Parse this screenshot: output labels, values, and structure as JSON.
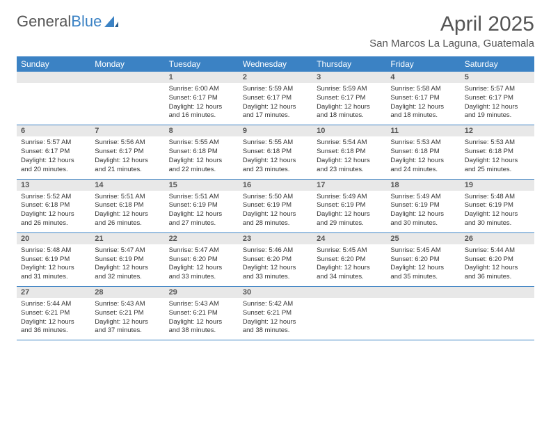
{
  "logo": {
    "text1": "General",
    "text2": "Blue"
  },
  "title": "April 2025",
  "location": "San Marcos La Laguna, Guatemala",
  "colors": {
    "header_bg": "#3b82c4",
    "header_text": "#ffffff",
    "daynum_bg": "#e8e8e8",
    "border": "#3b82c4",
    "text": "#333333",
    "title_text": "#555555"
  },
  "weekdays": [
    "Sunday",
    "Monday",
    "Tuesday",
    "Wednesday",
    "Thursday",
    "Friday",
    "Saturday"
  ],
  "weeks": [
    [
      {
        "n": "",
        "sr": "",
        "ss": "",
        "dl": ""
      },
      {
        "n": "",
        "sr": "",
        "ss": "",
        "dl": ""
      },
      {
        "n": "1",
        "sr": "Sunrise: 6:00 AM",
        "ss": "Sunset: 6:17 PM",
        "dl": "Daylight: 12 hours and 16 minutes."
      },
      {
        "n": "2",
        "sr": "Sunrise: 5:59 AM",
        "ss": "Sunset: 6:17 PM",
        "dl": "Daylight: 12 hours and 17 minutes."
      },
      {
        "n": "3",
        "sr": "Sunrise: 5:59 AM",
        "ss": "Sunset: 6:17 PM",
        "dl": "Daylight: 12 hours and 18 minutes."
      },
      {
        "n": "4",
        "sr": "Sunrise: 5:58 AM",
        "ss": "Sunset: 6:17 PM",
        "dl": "Daylight: 12 hours and 18 minutes."
      },
      {
        "n": "5",
        "sr": "Sunrise: 5:57 AM",
        "ss": "Sunset: 6:17 PM",
        "dl": "Daylight: 12 hours and 19 minutes."
      }
    ],
    [
      {
        "n": "6",
        "sr": "Sunrise: 5:57 AM",
        "ss": "Sunset: 6:17 PM",
        "dl": "Daylight: 12 hours and 20 minutes."
      },
      {
        "n": "7",
        "sr": "Sunrise: 5:56 AM",
        "ss": "Sunset: 6:17 PM",
        "dl": "Daylight: 12 hours and 21 minutes."
      },
      {
        "n": "8",
        "sr": "Sunrise: 5:55 AM",
        "ss": "Sunset: 6:18 PM",
        "dl": "Daylight: 12 hours and 22 minutes."
      },
      {
        "n": "9",
        "sr": "Sunrise: 5:55 AM",
        "ss": "Sunset: 6:18 PM",
        "dl": "Daylight: 12 hours and 23 minutes."
      },
      {
        "n": "10",
        "sr": "Sunrise: 5:54 AM",
        "ss": "Sunset: 6:18 PM",
        "dl": "Daylight: 12 hours and 23 minutes."
      },
      {
        "n": "11",
        "sr": "Sunrise: 5:53 AM",
        "ss": "Sunset: 6:18 PM",
        "dl": "Daylight: 12 hours and 24 minutes."
      },
      {
        "n": "12",
        "sr": "Sunrise: 5:53 AM",
        "ss": "Sunset: 6:18 PM",
        "dl": "Daylight: 12 hours and 25 minutes."
      }
    ],
    [
      {
        "n": "13",
        "sr": "Sunrise: 5:52 AM",
        "ss": "Sunset: 6:18 PM",
        "dl": "Daylight: 12 hours and 26 minutes."
      },
      {
        "n": "14",
        "sr": "Sunrise: 5:51 AM",
        "ss": "Sunset: 6:18 PM",
        "dl": "Daylight: 12 hours and 26 minutes."
      },
      {
        "n": "15",
        "sr": "Sunrise: 5:51 AM",
        "ss": "Sunset: 6:19 PM",
        "dl": "Daylight: 12 hours and 27 minutes."
      },
      {
        "n": "16",
        "sr": "Sunrise: 5:50 AM",
        "ss": "Sunset: 6:19 PM",
        "dl": "Daylight: 12 hours and 28 minutes."
      },
      {
        "n": "17",
        "sr": "Sunrise: 5:49 AM",
        "ss": "Sunset: 6:19 PM",
        "dl": "Daylight: 12 hours and 29 minutes."
      },
      {
        "n": "18",
        "sr": "Sunrise: 5:49 AM",
        "ss": "Sunset: 6:19 PM",
        "dl": "Daylight: 12 hours and 30 minutes."
      },
      {
        "n": "19",
        "sr": "Sunrise: 5:48 AM",
        "ss": "Sunset: 6:19 PM",
        "dl": "Daylight: 12 hours and 30 minutes."
      }
    ],
    [
      {
        "n": "20",
        "sr": "Sunrise: 5:48 AM",
        "ss": "Sunset: 6:19 PM",
        "dl": "Daylight: 12 hours and 31 minutes."
      },
      {
        "n": "21",
        "sr": "Sunrise: 5:47 AM",
        "ss": "Sunset: 6:19 PM",
        "dl": "Daylight: 12 hours and 32 minutes."
      },
      {
        "n": "22",
        "sr": "Sunrise: 5:47 AM",
        "ss": "Sunset: 6:20 PM",
        "dl": "Daylight: 12 hours and 33 minutes."
      },
      {
        "n": "23",
        "sr": "Sunrise: 5:46 AM",
        "ss": "Sunset: 6:20 PM",
        "dl": "Daylight: 12 hours and 33 minutes."
      },
      {
        "n": "24",
        "sr": "Sunrise: 5:45 AM",
        "ss": "Sunset: 6:20 PM",
        "dl": "Daylight: 12 hours and 34 minutes."
      },
      {
        "n": "25",
        "sr": "Sunrise: 5:45 AM",
        "ss": "Sunset: 6:20 PM",
        "dl": "Daylight: 12 hours and 35 minutes."
      },
      {
        "n": "26",
        "sr": "Sunrise: 5:44 AM",
        "ss": "Sunset: 6:20 PM",
        "dl": "Daylight: 12 hours and 36 minutes."
      }
    ],
    [
      {
        "n": "27",
        "sr": "Sunrise: 5:44 AM",
        "ss": "Sunset: 6:21 PM",
        "dl": "Daylight: 12 hours and 36 minutes."
      },
      {
        "n": "28",
        "sr": "Sunrise: 5:43 AM",
        "ss": "Sunset: 6:21 PM",
        "dl": "Daylight: 12 hours and 37 minutes."
      },
      {
        "n": "29",
        "sr": "Sunrise: 5:43 AM",
        "ss": "Sunset: 6:21 PM",
        "dl": "Daylight: 12 hours and 38 minutes."
      },
      {
        "n": "30",
        "sr": "Sunrise: 5:42 AM",
        "ss": "Sunset: 6:21 PM",
        "dl": "Daylight: 12 hours and 38 minutes."
      },
      {
        "n": "",
        "sr": "",
        "ss": "",
        "dl": ""
      },
      {
        "n": "",
        "sr": "",
        "ss": "",
        "dl": ""
      },
      {
        "n": "",
        "sr": "",
        "ss": "",
        "dl": ""
      }
    ]
  ]
}
